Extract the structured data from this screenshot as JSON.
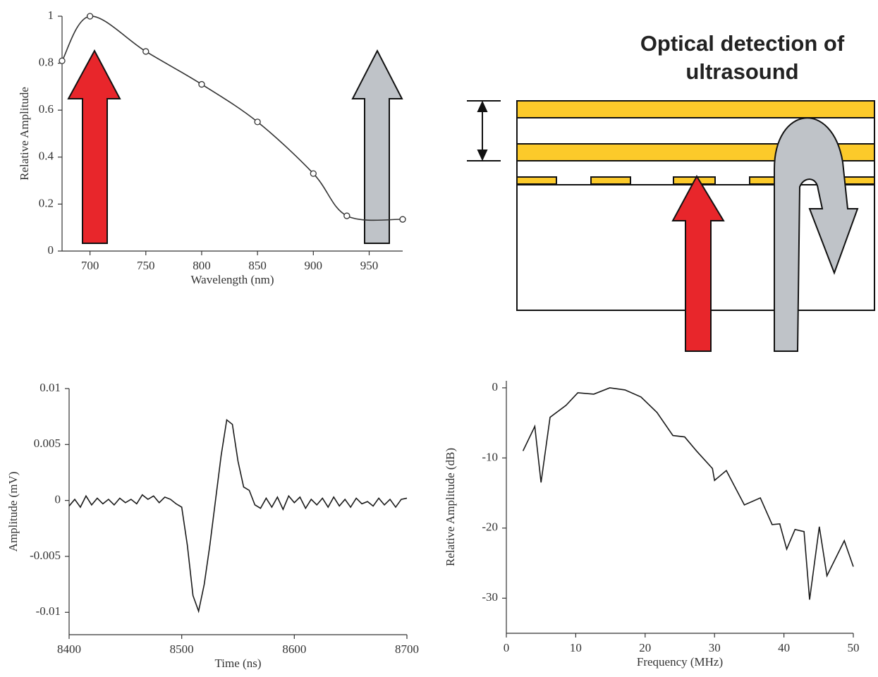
{
  "chart_data": [
    {
      "type": "line",
      "markers": true,
      "smooth": true,
      "color": "#333333",
      "xlabel": "Wavelength (nm)",
      "ylabel": "Relative Amplitude",
      "x": [
        675,
        700,
        750,
        800,
        850,
        900,
        930,
        980
      ],
      "values": [
        0.81,
        1.0,
        0.85,
        0.71,
        0.55,
        0.33,
        0.15,
        0.135
      ],
      "xlim": [
        675,
        980
      ],
      "xticks": [
        700,
        750,
        800,
        850,
        900,
        950
      ],
      "ylim": [
        0,
        1
      ],
      "yticks": [
        0,
        0.2,
        0.4,
        0.6,
        0.8,
        1
      ]
    },
    {
      "type": "line",
      "color": "#1a1a1a",
      "xlabel": "Time (ns)",
      "ylabel": "Amplitude (mV)",
      "x": [
        8400,
        8405,
        8410,
        8415,
        8420,
        8425,
        8430,
        8435,
        8440,
        8445,
        8450,
        8455,
        8460,
        8465,
        8470,
        8475,
        8480,
        8485,
        8490,
        8495,
        8500,
        8505,
        8510,
        8515,
        8520,
        8525,
        8530,
        8535,
        8540,
        8545,
        8550,
        8555,
        8560,
        8565,
        8570,
        8575,
        8580,
        8585,
        8590,
        8595,
        8600,
        8605,
        8610,
        8615,
        8620,
        8625,
        8630,
        8635,
        8640,
        8645,
        8650,
        8655,
        8660,
        8665,
        8670,
        8675,
        8680,
        8685,
        8690,
        8695,
        8700
      ],
      "values": [
        -0.0005,
        0.0001,
        -0.0006,
        0.0004,
        -0.0004,
        0.0002,
        -0.0003,
        0.0001,
        -0.0004,
        0.0002,
        -0.0002,
        0.0001,
        -0.0003,
        0.0005,
        0.0001,
        0.0004,
        -0.0002,
        0.0003,
        0.0001,
        -0.0003,
        -0.0006,
        -0.004,
        -0.0085,
        -0.0099,
        -0.0075,
        -0.004,
        0.0,
        0.004,
        0.0072,
        0.0068,
        0.0035,
        0.0012,
        0.0009,
        -0.0004,
        -0.0007,
        0.0002,
        -0.0006,
        0.0003,
        -0.0008,
        0.0004,
        -0.0002,
        0.0003,
        -0.0007,
        0.0001,
        -0.0004,
        0.0002,
        -0.0006,
        0.0003,
        -0.0005,
        0.0001,
        -0.0006,
        0.0002,
        -0.0003,
        -0.0001,
        -0.0005,
        0.0002,
        -0.0004,
        0.0001,
        -0.0006,
        0.0001,
        0.0002
      ],
      "xlim": [
        8400,
        8700
      ],
      "xticks": [
        8400,
        8500,
        8600,
        8700
      ],
      "ylim": [
        -0.012,
        0.01
      ],
      "yticks": [
        0.01,
        0.005,
        0,
        -0.005,
        -0.01
      ]
    },
    {
      "type": "line",
      "color": "#1a1a1a",
      "xlabel": "Frequency (MHz)",
      "ylabel": "Relative Amplitude (dB)",
      "x": [
        2.4,
        4.1,
        5,
        6.3,
        8.6,
        10.3,
        12.6,
        14.9,
        17.1,
        19.4,
        21.7,
        24,
        25.7,
        27.4,
        29.7,
        30,
        31.7,
        33.4,
        34.3,
        36.6,
        38.3,
        39.4,
        40.4,
        41.6,
        42.9,
        43.7,
        45.1,
        46.2,
        48.7,
        50
      ],
      "values": [
        -9,
        -5.5,
        -13.5,
        -4.2,
        -2.5,
        -0.7,
        -0.9,
        0,
        -0.3,
        -1.3,
        -3.5,
        -6.8,
        -7,
        -9,
        -11.5,
        -13.2,
        -11.8,
        -15,
        -16.7,
        -15.7,
        -19.5,
        -19.4,
        -23,
        -20.2,
        -20.5,
        -30.2,
        -19.8,
        -26.8,
        -21.8,
        -25.5
      ],
      "xlim": [
        0,
        50
      ],
      "xticks": [
        0,
        10,
        20,
        30,
        40,
        50
      ],
      "ylim": [
        -35,
        1
      ],
      "yticks": [
        0,
        -10,
        -20,
        -30
      ]
    }
  ],
  "diagram": {
    "title": "Optical detection of ultrasound"
  }
}
